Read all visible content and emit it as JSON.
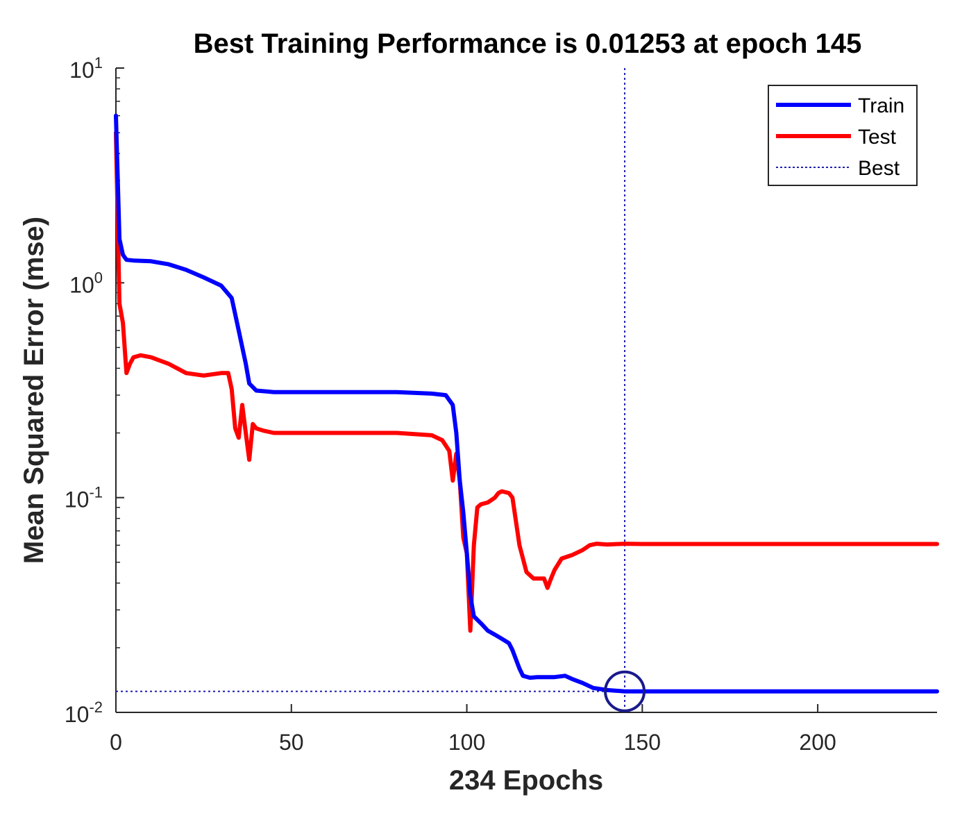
{
  "chart_data": {
    "type": "line",
    "title": "Best Training Performance is 0.01253 at epoch 145",
    "xlabel": "234 Epochs",
    "ylabel": "Mean Squared Error  (mse)",
    "xlim": [
      0,
      234
    ],
    "ylim": [
      0.01,
      10
    ],
    "y_scale": "log",
    "x_ticks": [
      "0",
      "50",
      "100",
      "150",
      "200"
    ],
    "y_ticks": [
      {
        "base": "10",
        "exp": "1"
      },
      {
        "base": "10",
        "exp": "0"
      },
      {
        "base": "10",
        "exp": "-1"
      },
      {
        "base": "10",
        "exp": "-2"
      }
    ],
    "grid": false,
    "legend_position": "top-right",
    "best": {
      "epoch": 145,
      "value": 0.01253,
      "label": "Best",
      "color": "#1f1fb0"
    },
    "series": [
      {
        "name": "Train",
        "color": "#0000ff",
        "x": [
          0,
          1,
          2,
          3,
          5,
          10,
          15,
          20,
          25,
          30,
          33,
          35,
          37,
          38,
          40,
          45,
          50,
          60,
          70,
          80,
          90,
          94,
          96,
          97,
          98,
          99,
          100,
          101,
          102,
          104,
          106,
          108,
          110,
          112,
          113,
          115,
          116,
          118,
          120,
          125,
          128,
          130,
          133,
          136,
          140,
          145,
          150,
          175,
          200,
          234
        ],
        "y": [
          6.0,
          1.6,
          1.35,
          1.28,
          1.27,
          1.26,
          1.22,
          1.15,
          1.06,
          0.97,
          0.85,
          0.6,
          0.42,
          0.34,
          0.315,
          0.31,
          0.31,
          0.31,
          0.31,
          0.31,
          0.305,
          0.3,
          0.27,
          0.2,
          0.12,
          0.085,
          0.055,
          0.035,
          0.028,
          0.026,
          0.024,
          0.023,
          0.022,
          0.021,
          0.0195,
          0.016,
          0.0148,
          0.0145,
          0.0146,
          0.0146,
          0.0148,
          0.0143,
          0.0137,
          0.013,
          0.0127,
          0.01253,
          0.01253,
          0.01253,
          0.01253,
          0.01253
        ]
      },
      {
        "name": "Test",
        "color": "#ff0000",
        "x": [
          0,
          1,
          2,
          3,
          4,
          5,
          7,
          10,
          15,
          20,
          25,
          30,
          32,
          33,
          34,
          35,
          36,
          37,
          38,
          39,
          40,
          42,
          45,
          50,
          60,
          70,
          80,
          90,
          93,
          95,
          96,
          97,
          98,
          99,
          100,
          101,
          102,
          103,
          104,
          106,
          108,
          109,
          110,
          112,
          113,
          115,
          117,
          119,
          121,
          122,
          123,
          124,
          125,
          127,
          130,
          133,
          135,
          137,
          140,
          145,
          150,
          175,
          200,
          234
        ],
        "y": [
          5.0,
          0.8,
          0.65,
          0.38,
          0.42,
          0.45,
          0.46,
          0.45,
          0.42,
          0.38,
          0.37,
          0.38,
          0.38,
          0.32,
          0.21,
          0.19,
          0.27,
          0.2,
          0.15,
          0.22,
          0.21,
          0.205,
          0.2,
          0.2,
          0.2,
          0.2,
          0.2,
          0.195,
          0.185,
          0.165,
          0.12,
          0.16,
          0.12,
          0.065,
          0.055,
          0.024,
          0.06,
          0.09,
          0.093,
          0.095,
          0.1,
          0.105,
          0.107,
          0.105,
          0.1,
          0.06,
          0.045,
          0.042,
          0.042,
          0.042,
          0.038,
          0.042,
          0.046,
          0.052,
          0.054,
          0.057,
          0.06,
          0.061,
          0.0605,
          0.061,
          0.0608,
          0.0608,
          0.0608,
          0.0608
        ]
      }
    ]
  }
}
